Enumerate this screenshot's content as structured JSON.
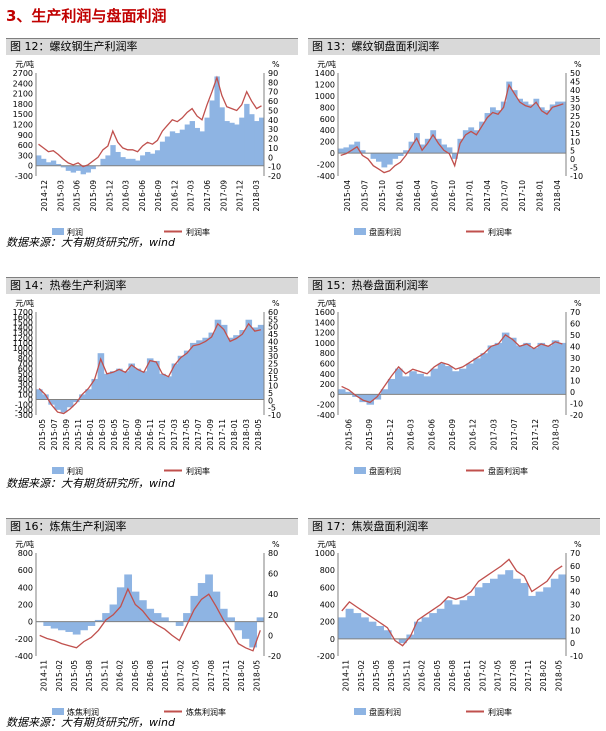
{
  "section_title": "3、生产利润与盘面利润",
  "sources": [
    "数据来源：大有期货研究所，wind",
    "数据来源：大有期货研究所，wind",
    "数据来源：大有期货研究所，wind"
  ],
  "colors": {
    "bar": "#8eb4e3",
    "line": "#c0504d",
    "header": "#d9d9d9"
  },
  "chart_data": [
    {
      "fig_title": "图 12：螺纹钢生产利润率",
      "type": "area",
      "left_unit": "元/吨",
      "right_unit": "%",
      "left_ticks": [
        -300,
        0,
        300,
        600,
        900,
        1200,
        1500,
        1800,
        2100,
        2400,
        2700
      ],
      "right_ticks": [
        -20,
        -10,
        0,
        10,
        20,
        30,
        40,
        50,
        60,
        70,
        80,
        90
      ],
      "ylim_left": [
        -300,
        2700
      ],
      "ylim_right": [
        -20,
        90
      ],
      "xticks": [
        "2014-12",
        "2015-03",
        "2015-06",
        "2015-09",
        "2015-12",
        "2016-03",
        "2016-06",
        "2016-09",
        "2016-12",
        "2017-03",
        "2017-06",
        "2017-09",
        "2017-12",
        "2018-03"
      ],
      "series": [
        {
          "name": "利润",
          "kind": "bar",
          "axis": "left",
          "values": [
            300,
            200,
            100,
            150,
            50,
            -50,
            -150,
            -200,
            -150,
            -250,
            -200,
            -100,
            0,
            200,
            300,
            600,
            400,
            250,
            200,
            200,
            150,
            300,
            400,
            350,
            450,
            700,
            850,
            1000,
            950,
            1050,
            1200,
            1300,
            1100,
            1000,
            1400,
            1900,
            2600,
            1700,
            1300,
            1250,
            1200,
            1400,
            1800,
            1500,
            1300,
            1400
          ]
        },
        {
          "name": "利润率",
          "kind": "line",
          "axis": "right",
          "values": [
            14,
            10,
            6,
            7,
            3,
            -2,
            -6,
            -8,
            -6,
            -10,
            -8,
            -4,
            0,
            8,
            12,
            28,
            16,
            10,
            8,
            8,
            6,
            12,
            16,
            14,
            18,
            28,
            34,
            40,
            38,
            42,
            48,
            52,
            44,
            40,
            56,
            70,
            85,
            66,
            54,
            52,
            50,
            56,
            70,
            60,
            52,
            55
          ]
        }
      ]
    },
    {
      "fig_title": "图 13：螺纹钢盘面利润率",
      "type": "area",
      "left_unit": "元/吨",
      "right_unit": "%",
      "left_ticks": [
        -400,
        -200,
        0,
        200,
        400,
        600,
        800,
        1000,
        1200,
        1400
      ],
      "right_ticks": [
        -10,
        -5,
        0,
        5,
        10,
        15,
        20,
        25,
        30,
        35,
        40,
        45,
        50
      ],
      "ylim_left": [
        -400,
        1400
      ],
      "ylim_right": [
        -10,
        50
      ],
      "xticks": [
        "2015-04",
        "2015-07",
        "2015-10",
        "2016-01",
        "2016-04",
        "2016-07",
        "2016-10",
        "2017-01",
        "2017-04",
        "2017-07",
        "2017-10",
        "2018-01",
        "2018-04"
      ],
      "series": [
        {
          "name": "盘面利润",
          "kind": "bar",
          "axis": "left",
          "values": [
            80,
            100,
            150,
            200,
            50,
            0,
            -100,
            -150,
            -250,
            -200,
            -100,
            -50,
            50,
            200,
            350,
            150,
            250,
            400,
            250,
            150,
            100,
            -100,
            250,
            400,
            450,
            400,
            550,
            700,
            800,
            750,
            900,
            1250,
            1100,
            950,
            900,
            850,
            950,
            800,
            750,
            850,
            900,
            900
          ]
        },
        {
          "name": "利润率",
          "kind": "line",
          "axis": "right",
          "values": [
            2,
            3,
            5,
            7,
            2,
            0,
            -4,
            -6,
            -8,
            -7,
            -4,
            -2,
            2,
            7,
            12,
            5,
            9,
            14,
            9,
            5,
            3,
            -4,
            9,
            14,
            16,
            14,
            19,
            24,
            27,
            26,
            30,
            43,
            38,
            33,
            31,
            30,
            33,
            28,
            26,
            30,
            31,
            32
          ]
        }
      ]
    },
    {
      "fig_title": "图 14：热卷生产利润率",
      "type": "area",
      "left_unit": "元/吨",
      "right_unit": "%",
      "left_ticks": [
        -300,
        -200,
        -100,
        0,
        100,
        200,
        300,
        400,
        500,
        600,
        700,
        800,
        900,
        1000,
        1100,
        1200,
        1300,
        1400,
        1500,
        1600,
        1700
      ],
      "right_ticks": [
        -10,
        -5,
        0,
        5,
        10,
        15,
        20,
        25,
        30,
        35,
        40,
        45,
        50,
        55,
        60
      ],
      "ylim_left": [
        -300,
        1700
      ],
      "ylim_right": [
        -10,
        60
      ],
      "xticks": [
        "2015-05",
        "2015-07",
        "2015-09",
        "2015-11",
        "2016-01",
        "2016-03",
        "2016-05",
        "2016-07",
        "2016-09",
        "2016-11",
        "2017-01",
        "2017-03",
        "2017-05",
        "2017-07",
        "2017-09",
        "2017-11",
        "2018-01",
        "2018-03",
        "2018-05"
      ],
      "series": [
        {
          "name": "利润",
          "kind": "bar",
          "axis": "left",
          "values": [
            200,
            100,
            -100,
            -200,
            -250,
            -150,
            -50,
            100,
            200,
            400,
            900,
            500,
            550,
            600,
            550,
            700,
            600,
            550,
            800,
            750,
            500,
            450,
            700,
            850,
            950,
            1100,
            1150,
            1200,
            1300,
            1550,
            1450,
            1200,
            1250,
            1350,
            1550,
            1400,
            1450
          ]
        },
        {
          "name": "利润率",
          "kind": "line",
          "axis": "right",
          "values": [
            8,
            4,
            -3,
            -8,
            -9,
            -6,
            -2,
            4,
            8,
            14,
            28,
            18,
            19,
            21,
            19,
            24,
            21,
            19,
            27,
            26,
            18,
            16,
            24,
            29,
            32,
            37,
            38,
            40,
            43,
            52,
            48,
            40,
            42,
            45,
            52,
            47,
            48
          ]
        }
      ]
    },
    {
      "fig_title": "图 15：热卷盘面利润率",
      "type": "area",
      "left_unit": "元/吨",
      "right_unit": "%",
      "left_ticks": [
        -400,
        -200,
        0,
        200,
        400,
        600,
        800,
        1000,
        1200,
        1400,
        1600
      ],
      "right_ticks": [
        -20,
        -10,
        0,
        10,
        20,
        30,
        40,
        50,
        60,
        70
      ],
      "ylim_left": [
        -400,
        1600
      ],
      "ylim_right": [
        -20,
        70
      ],
      "xticks": [
        "2015-06",
        "2015-09",
        "2015-12",
        "2016-03",
        "2016-06",
        "2016-09",
        "2016-12",
        "2017-03",
        "2017-07",
        "2017-12",
        "2018-03"
      ],
      "series": [
        {
          "name": "盘面利润",
          "kind": "bar",
          "axis": "left",
          "values": [
            100,
            50,
            -50,
            -150,
            -200,
            -100,
            100,
            300,
            500,
            350,
            450,
            400,
            350,
            500,
            600,
            550,
            450,
            500,
            600,
            700,
            800,
            950,
            1000,
            1200,
            1100,
            950,
            1000,
            900,
            1000,
            950,
            1050,
            1000
          ]
        },
        {
          "name": "盘面利润率",
          "kind": "line",
          "axis": "right",
          "values": [
            5,
            2,
            -3,
            -7,
            -9,
            -4,
            5,
            14,
            22,
            16,
            20,
            18,
            16,
            22,
            26,
            24,
            20,
            22,
            26,
            30,
            34,
            40,
            42,
            50,
            46,
            40,
            42,
            38,
            42,
            40,
            44,
            42
          ]
        }
      ]
    },
    {
      "fig_title": "图 16：炼焦生产利润率",
      "type": "area",
      "left_unit": "元/吨",
      "right_unit": "%",
      "left_ticks": [
        -400,
        -200,
        0,
        200,
        400,
        600,
        800
      ],
      "right_ticks": [
        -20,
        0,
        20,
        40,
        60,
        80
      ],
      "ylim_left": [
        -400,
        800
      ],
      "ylim_right": [
        -20,
        80
      ],
      "xticks": [
        "2014-11",
        "2015-02",
        "2015-05",
        "2015-08",
        "2015-11",
        "2016-02",
        "2016-05",
        "2016-08",
        "2016-11",
        "2017-02",
        "2017-05",
        "2017-08",
        "2017-11",
        "2018-02",
        "2018-05"
      ],
      "series": [
        {
          "name": "炼焦利润",
          "kind": "bar",
          "axis": "left",
          "values": [
            0,
            -50,
            -80,
            -100,
            -120,
            -150,
            -100,
            -50,
            20,
            100,
            200,
            400,
            550,
            350,
            250,
            150,
            100,
            50,
            0,
            -50,
            100,
            300,
            450,
            550,
            350,
            150,
            50,
            -100,
            -200,
            -300,
            50
          ]
        },
        {
          "name": "炼焦利润率",
          "kind": "line",
          "axis": "right",
          "values": [
            0,
            -3,
            -5,
            -8,
            -10,
            -12,
            -6,
            -2,
            5,
            15,
            20,
            28,
            45,
            30,
            24,
            15,
            10,
            6,
            0,
            -5,
            10,
            25,
            35,
            40,
            28,
            15,
            5,
            -8,
            -12,
            -15,
            5
          ]
        }
      ]
    },
    {
      "fig_title": "图 17：焦炭盘面利润率",
      "type": "area",
      "left_unit": "元/吨",
      "right_unit": "%",
      "left_ticks": [
        -200,
        0,
        200,
        400,
        600,
        800,
        1000
      ],
      "right_ticks": [
        -10,
        0,
        10,
        20,
        30,
        40,
        50,
        60,
        70
      ],
      "ylim_left": [
        -200,
        1000
      ],
      "ylim_right": [
        -10,
        70
      ],
      "xticks": [
        "2014-11",
        "2015-02",
        "2015-05",
        "2015-08",
        "2015-11",
        "2016-02",
        "2016-05",
        "2016-08",
        "2016-11",
        "2017-02",
        "2017-05",
        "2017-08",
        "2017-11",
        "2018-02",
        "2018-05"
      ],
      "series": [
        {
          "name": "盘面利润",
          "kind": "bar",
          "axis": "left",
          "values": [
            250,
            350,
            300,
            250,
            200,
            150,
            100,
            0,
            -50,
            50,
            200,
            250,
            300,
            350,
            450,
            400,
            450,
            500,
            600,
            650,
            700,
            750,
            800,
            700,
            650,
            500,
            550,
            600,
            700,
            750
          ]
        },
        {
          "name": "利润率",
          "kind": "line",
          "axis": "right",
          "values": [
            25,
            32,
            28,
            24,
            20,
            16,
            12,
            2,
            -2,
            5,
            18,
            22,
            26,
            30,
            36,
            34,
            36,
            40,
            48,
            52,
            56,
            60,
            65,
            56,
            52,
            40,
            44,
            48,
            56,
            60
          ]
        }
      ]
    }
  ]
}
